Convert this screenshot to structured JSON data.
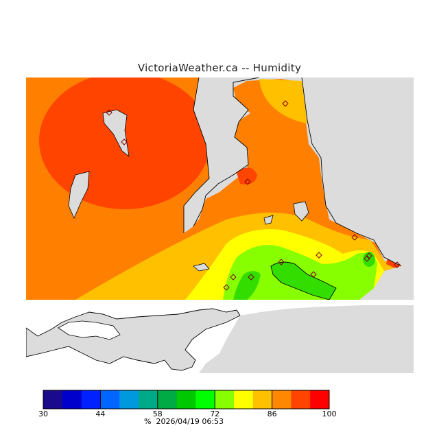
{
  "title": "VictoriaWeather.ca -- Humidity",
  "timestamp_line": "%  2026/04/19 06:53",
  "legend": {
    "colors": [
      "#1a0a8c",
      "#0000cc",
      "#0022ff",
      "#0066ff",
      "#0099dd",
      "#00aa88",
      "#00aa44",
      "#00c800",
      "#00ff00",
      "#88ff00",
      "#ffff00",
      "#ffc000",
      "#ff8800",
      "#ff4400",
      "#ff0000"
    ],
    "ticks": [
      "30",
      "44",
      "58",
      "72",
      "86",
      "100"
    ],
    "min": 30,
    "max": 100
  },
  "map": {
    "land_color": "#dcdcdc",
    "water_color": "#ffffff",
    "station_marker": "diamond-icon"
  }
}
